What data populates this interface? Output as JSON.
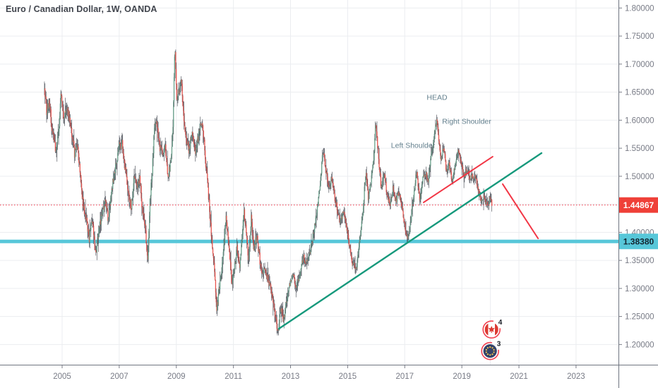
{
  "header": {
    "symbol_title": "Euro / Canadian Dollar, 1W, OANDA"
  },
  "price_scale": {
    "tick_labels": [
      "1.80000",
      "1.75000",
      "1.70000",
      "1.65000",
      "1.60000",
      "1.55000",
      "1.50000",
      "1.45000",
      "1.40000",
      "1.35000",
      "1.30000",
      "1.25000",
      "1.20000"
    ],
    "tick_values": [
      1.8,
      1.75,
      1.7,
      1.65,
      1.6,
      1.55,
      1.5,
      1.45,
      1.4,
      1.35,
      1.3,
      1.25,
      1.2
    ]
  },
  "time_scale": {
    "tick_years": [
      2005,
      2007,
      2009,
      2011,
      2013,
      2015,
      2017,
      2019,
      2021,
      2023
    ],
    "extra_gridline_years": [
      2020
    ]
  },
  "chart_data": {
    "type": "candlestick",
    "title": "Euro / Canadian Dollar, 1W, OANDA",
    "instrument": "Euro / Canadian Dollar",
    "timeframe": "1W",
    "provider": "OANDA",
    "x_range_years": [
      2002.82,
      2024.49
    ],
    "y_range": [
      1.164,
      1.814
    ],
    "grid": true,
    "series_start_year": 2004.38,
    "series_end_year": 2020.06,
    "weekly_close_path": [
      [
        2004.38,
        1.655
      ],
      [
        2004.46,
        1.615
      ],
      [
        2004.54,
        1.635
      ],
      [
        2004.65,
        1.585
      ],
      [
        2004.77,
        1.548
      ],
      [
        2004.88,
        1.577
      ],
      [
        2004.96,
        1.655
      ],
      [
        2005.06,
        1.603
      ],
      [
        2005.18,
        1.622
      ],
      [
        2005.32,
        1.585
      ],
      [
        2005.44,
        1.538
      ],
      [
        2005.52,
        1.558
      ],
      [
        2005.65,
        1.495
      ],
      [
        2005.75,
        1.442
      ],
      [
        2005.85,
        1.422
      ],
      [
        2005.95,
        1.388
      ],
      [
        2006.05,
        1.425
      ],
      [
        2006.17,
        1.362
      ],
      [
        2006.3,
        1.405
      ],
      [
        2006.42,
        1.438
      ],
      [
        2006.52,
        1.452
      ],
      [
        2006.62,
        1.424
      ],
      [
        2006.75,
        1.48
      ],
      [
        2006.88,
        1.52
      ],
      [
        2006.98,
        1.553
      ],
      [
        2007.1,
        1.558
      ],
      [
        2007.22,
        1.51
      ],
      [
        2007.34,
        1.468
      ],
      [
        2007.42,
        1.442
      ],
      [
        2007.52,
        1.503
      ],
      [
        2007.63,
        1.48
      ],
      [
        2007.72,
        1.495
      ],
      [
        2007.81,
        1.44
      ],
      [
        2007.92,
        1.405
      ],
      [
        2008.0,
        1.345
      ],
      [
        2008.08,
        1.458
      ],
      [
        2008.17,
        1.52
      ],
      [
        2008.24,
        1.6
      ],
      [
        2008.32,
        1.59
      ],
      [
        2008.42,
        1.55
      ],
      [
        2008.52,
        1.538
      ],
      [
        2008.6,
        1.56
      ],
      [
        2008.7,
        1.5
      ],
      [
        2008.8,
        1.52
      ],
      [
        2008.88,
        1.585
      ],
      [
        2008.95,
        1.735
      ],
      [
        2009.02,
        1.63
      ],
      [
        2009.1,
        1.655
      ],
      [
        2009.17,
        1.68
      ],
      [
        2009.27,
        1.59
      ],
      [
        2009.37,
        1.56
      ],
      [
        2009.45,
        1.545
      ],
      [
        2009.55,
        1.58
      ],
      [
        2009.65,
        1.542
      ],
      [
        2009.75,
        1.565
      ],
      [
        2009.86,
        1.595
      ],
      [
        2009.95,
        1.578
      ],
      [
        2010.05,
        1.51
      ],
      [
        2010.15,
        1.45
      ],
      [
        2010.25,
        1.38
      ],
      [
        2010.33,
        1.335
      ],
      [
        2010.42,
        1.262
      ],
      [
        2010.52,
        1.31
      ],
      [
        2010.62,
        1.35
      ],
      [
        2010.74,
        1.425
      ],
      [
        2010.85,
        1.37
      ],
      [
        2010.95,
        1.302
      ],
      [
        2011.05,
        1.345
      ],
      [
        2011.12,
        1.372
      ],
      [
        2011.22,
        1.342
      ],
      [
        2011.37,
        1.435
      ],
      [
        2011.47,
        1.39
      ],
      [
        2011.53,
        1.345
      ],
      [
        2011.62,
        1.425
      ],
      [
        2011.72,
        1.37
      ],
      [
        2011.82,
        1.395
      ],
      [
        2011.92,
        1.352
      ],
      [
        2012.0,
        1.322
      ],
      [
        2012.1,
        1.342
      ],
      [
        2012.2,
        1.318
      ],
      [
        2012.3,
        1.305
      ],
      [
        2012.42,
        1.262
      ],
      [
        2012.56,
        1.222
      ],
      [
        2012.66,
        1.268
      ],
      [
        2012.76,
        1.245
      ],
      [
        2012.88,
        1.285
      ],
      [
        2012.98,
        1.308
      ],
      [
        2013.08,
        1.328
      ],
      [
        2013.2,
        1.302
      ],
      [
        2013.32,
        1.322
      ],
      [
        2013.45,
        1.358
      ],
      [
        2013.58,
        1.342
      ],
      [
        2013.68,
        1.362
      ],
      [
        2013.8,
        1.398
      ],
      [
        2013.92,
        1.435
      ],
      [
        2014.02,
        1.478
      ],
      [
        2014.14,
        1.548
      ],
      [
        2014.25,
        1.508
      ],
      [
        2014.35,
        1.478
      ],
      [
        2014.45,
        1.498
      ],
      [
        2014.55,
        1.462
      ],
      [
        2014.65,
        1.438
      ],
      [
        2014.75,
        1.418
      ],
      [
        2014.85,
        1.438
      ],
      [
        2014.95,
        1.415
      ],
      [
        2015.05,
        1.378
      ],
      [
        2015.15,
        1.348
      ],
      [
        2015.3,
        1.332
      ],
      [
        2015.42,
        1.388
      ],
      [
        2015.52,
        1.425
      ],
      [
        2015.63,
        1.508
      ],
      [
        2015.72,
        1.462
      ],
      [
        2015.82,
        1.492
      ],
      [
        2015.92,
        1.535
      ],
      [
        2015.98,
        1.598
      ],
      [
        2016.08,
        1.535
      ],
      [
        2016.18,
        1.478
      ],
      [
        2016.28,
        1.502
      ],
      [
        2016.38,
        1.468
      ],
      [
        2016.48,
        1.448
      ],
      [
        2016.58,
        1.478
      ],
      [
        2016.68,
        1.455
      ],
      [
        2016.78,
        1.468
      ],
      [
        2016.88,
        1.455
      ],
      [
        2016.98,
        1.418
      ],
      [
        2017.1,
        1.387
      ],
      [
        2017.2,
        1.415
      ],
      [
        2017.3,
        1.462
      ],
      [
        2017.42,
        1.512
      ],
      [
        2017.52,
        1.455
      ],
      [
        2017.62,
        1.492
      ],
      [
        2017.72,
        1.508
      ],
      [
        2017.82,
        1.488
      ],
      [
        2017.92,
        1.535
      ],
      [
        2018.02,
        1.565
      ],
      [
        2018.12,
        1.603
      ],
      [
        2018.2,
        1.555
      ],
      [
        2018.28,
        1.528
      ],
      [
        2018.36,
        1.555
      ],
      [
        2018.46,
        1.505
      ],
      [
        2018.56,
        1.522
      ],
      [
        2018.66,
        1.49
      ],
      [
        2018.76,
        1.522
      ],
      [
        2018.88,
        1.552
      ],
      [
        2018.98,
        1.525
      ],
      [
        2019.08,
        1.502
      ],
      [
        2019.18,
        1.512
      ],
      [
        2019.28,
        1.495
      ],
      [
        2019.38,
        1.502
      ],
      [
        2019.48,
        1.498
      ],
      [
        2019.58,
        1.472
      ],
      [
        2019.68,
        1.458
      ],
      [
        2019.78,
        1.462
      ],
      [
        2019.88,
        1.452
      ],
      [
        2019.98,
        1.458
      ],
      [
        2020.06,
        1.449
      ]
    ],
    "current_price": {
      "value": 1.44867,
      "label": "1.44867",
      "style": "dotted"
    },
    "support_zone": {
      "value": 1.3838,
      "label": "1.38380"
    },
    "trend_lines": [
      {
        "name": "primary-uptrend",
        "color_key": "teal",
        "from": [
          2012.59,
          1.2281
        ],
        "to": [
          2021.79,
          1.5413
        ]
      },
      {
        "name": "neckline-resistance",
        "color_key": "red",
        "from": [
          2017.66,
          1.4533
        ],
        "to": [
          2020.08,
          1.535
        ]
      },
      {
        "name": "projected-breakdown",
        "color_key": "red",
        "from": [
          2020.43,
          1.486
        ],
        "to": [
          2021.67,
          1.3891
        ]
      }
    ],
    "pattern_labels": [
      {
        "text": "HEAD",
        "at": [
          2018.13,
          1.6407
        ]
      },
      {
        "text": "Right Shoulder",
        "at": [
          2019.17,
          1.5979
        ]
      },
      {
        "text": "Left Shoulder",
        "at": [
          2017.29,
          1.5551
        ]
      }
    ],
    "event_markers": [
      {
        "flag": "canada",
        "count": "4",
        "at": [
          2020.04,
          1.2268
        ]
      },
      {
        "flag": "eu",
        "count": "3",
        "at": [
          2019.99,
          1.1884
        ]
      }
    ]
  },
  "colors": {
    "background": "#ffffff",
    "grid": "#ebedf0",
    "axis_line": "#6f7580",
    "axis_text": "#787b86",
    "title_text": "#42464e",
    "candle_up": "#68a08a",
    "candle_down": "#e9544e",
    "candle_wick": "#4a4e57",
    "trend_teal": "#16997c",
    "trend_red": "#f23645",
    "current_price_red": "#f23645",
    "price_badge_red_bg": "#ef4038",
    "price_badge_red_text": "#ffffff",
    "support_band": "#57c7d9",
    "support_badge_bg": "#57c7d9",
    "support_badge_text": "#132530",
    "pattern_label_text": "#64808e",
    "event_ring": "#f24150",
    "eu_circle": "#35436a",
    "eu_stars": "#f6c34a",
    "canada_red": "#dc3a32",
    "marker_count_text": "#1b1f27"
  }
}
